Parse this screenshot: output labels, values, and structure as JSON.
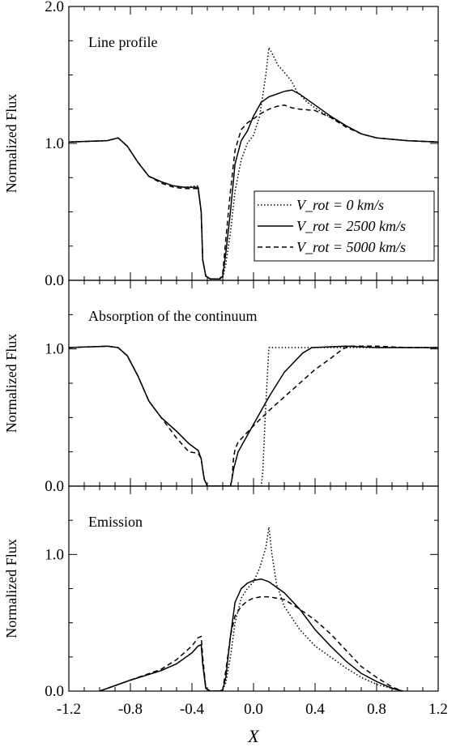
{
  "chart_data": {
    "type": "line",
    "xlabel": "X",
    "xlim": [
      -1.2,
      1.2
    ],
    "x_ticks": [
      "-1.2",
      "-0.8",
      "-0.4",
      "0.0",
      "0.4",
      "0.8",
      "1.2"
    ],
    "legend": {
      "placement": "right-middle of top panel",
      "entries": [
        {
          "style": "dotted",
          "text": "V_rot = 0 km/s"
        },
        {
          "style": "solid",
          "text": "V_rot = 2500 km/s"
        },
        {
          "style": "dashed",
          "text": "V_rot = 5000 km/s"
        }
      ]
    },
    "panels": [
      {
        "title": "Line profile",
        "ylabel": "Normalized Flux",
        "ylim": [
          0,
          2.0
        ],
        "y_ticks": [
          "0.0",
          "1.0",
          "2.0"
        ],
        "series": [
          {
            "style": "solid",
            "x": [
              -1.2,
              -0.95,
              -0.88,
              -0.82,
              -0.75,
              -0.68,
              -0.6,
              -0.52,
              -0.45,
              -0.36,
              -0.34,
              -0.33,
              -0.31,
              -0.28,
              -0.22,
              -0.2,
              -0.18,
              -0.15,
              -0.12,
              -0.08,
              -0.04,
              0.0,
              0.05,
              0.1,
              0.15,
              0.2,
              0.25,
              0.3,
              0.4,
              0.5,
              0.6,
              0.7,
              0.8,
              1.0,
              1.2
            ],
            "y": [
              1.01,
              1.02,
              1.04,
              0.98,
              0.86,
              0.76,
              0.72,
              0.69,
              0.68,
              0.68,
              0.5,
              0.15,
              0.03,
              0.01,
              0.01,
              0.03,
              0.2,
              0.5,
              0.85,
              1.02,
              1.09,
              1.2,
              1.3,
              1.34,
              1.36,
              1.38,
              1.39,
              1.36,
              1.28,
              1.2,
              1.13,
              1.07,
              1.04,
              1.02,
              1.01
            ]
          },
          {
            "style": "dotted",
            "x": [
              -1.2,
              -0.95,
              -0.88,
              -0.82,
              -0.75,
              -0.68,
              -0.6,
              -0.52,
              -0.45,
              -0.36,
              -0.34,
              -0.33,
              -0.31,
              -0.28,
              -0.22,
              -0.2,
              -0.18,
              -0.15,
              -0.12,
              -0.08,
              -0.04,
              0.0,
              0.04,
              0.08,
              0.1,
              0.12,
              0.16,
              0.2,
              0.25,
              0.28,
              0.35,
              0.4,
              0.5,
              0.6,
              0.7,
              0.8,
              1.0,
              1.2
            ],
            "y": [
              1.01,
              1.02,
              1.04,
              0.98,
              0.86,
              0.76,
              0.72,
              0.69,
              0.68,
              0.69,
              0.5,
              0.15,
              0.03,
              0.01,
              0.01,
              0.02,
              0.12,
              0.35,
              0.65,
              0.88,
              1.0,
              1.06,
              1.2,
              1.5,
              1.7,
              1.66,
              1.57,
              1.52,
              1.45,
              1.38,
              1.3,
              1.26,
              1.19,
              1.13,
              1.07,
              1.04,
              1.02,
              1.01
            ]
          },
          {
            "style": "dashed",
            "x": [
              -1.2,
              -0.95,
              -0.88,
              -0.82,
              -0.75,
              -0.68,
              -0.6,
              -0.52,
              -0.45,
              -0.36,
              -0.34,
              -0.33,
              -0.31,
              -0.28,
              -0.22,
              -0.2,
              -0.18,
              -0.15,
              -0.12,
              -0.08,
              -0.04,
              0.0,
              0.05,
              0.1,
              0.15,
              0.2,
              0.25,
              0.3,
              0.4,
              0.5,
              0.6,
              0.7,
              0.8,
              1.0,
              1.2
            ],
            "y": [
              1.01,
              1.02,
              1.04,
              0.98,
              0.86,
              0.76,
              0.71,
              0.68,
              0.67,
              0.67,
              0.5,
              0.15,
              0.03,
              0.01,
              0.01,
              0.05,
              0.3,
              0.65,
              0.95,
              1.1,
              1.15,
              1.18,
              1.22,
              1.25,
              1.27,
              1.28,
              1.26,
              1.25,
              1.24,
              1.19,
              1.12,
              1.07,
              1.04,
              1.02,
              1.01
            ]
          }
        ]
      },
      {
        "title": "Absorption of the continuum",
        "ylabel": "Normalized Flux",
        "ylim": [
          0,
          1.5
        ],
        "y_ticks": [
          "0.0",
          "1.0"
        ],
        "series": [
          {
            "style": "solid",
            "x": [
              -1.2,
              -0.95,
              -0.88,
              -0.82,
              -0.75,
              -0.68,
              -0.6,
              -0.5,
              -0.42,
              -0.36,
              -0.34,
              -0.33,
              -0.32,
              -0.3,
              -0.15,
              -0.14,
              -0.13,
              -0.1,
              0.0,
              0.1,
              0.2,
              0.32,
              0.38,
              0.6,
              0.8,
              1.0,
              1.2
            ],
            "y": [
              1.01,
              1.02,
              1.01,
              0.95,
              0.8,
              0.62,
              0.5,
              0.4,
              0.31,
              0.26,
              0.2,
              0.12,
              0.05,
              0.0,
              0.0,
              0.05,
              0.12,
              0.25,
              0.45,
              0.65,
              0.83,
              0.97,
              1.01,
              1.02,
              1.01,
              1.01,
              1.01
            ]
          },
          {
            "style": "dotted",
            "x": [
              -1.2,
              -0.95,
              -0.88,
              -0.82,
              -0.75,
              -0.68,
              -0.6,
              -0.5,
              -0.42,
              -0.36,
              -0.34,
              -0.33,
              -0.32,
              -0.3,
              0.05,
              0.06,
              0.08,
              0.1,
              0.2,
              0.4,
              0.6,
              0.8,
              1.0,
              1.2
            ],
            "y": [
              1.01,
              1.02,
              1.01,
              0.95,
              0.8,
              0.62,
              0.5,
              0.4,
              0.31,
              0.26,
              0.2,
              0.12,
              0.05,
              0.0,
              0.0,
              0.1,
              0.6,
              1.01,
              1.01,
              1.01,
              1.01,
              1.01,
              1.01,
              1.01
            ]
          },
          {
            "style": "dashed",
            "x": [
              -1.2,
              -0.95,
              -0.88,
              -0.82,
              -0.75,
              -0.68,
              -0.6,
              -0.5,
              -0.42,
              -0.36,
              -0.34,
              -0.33,
              -0.32,
              -0.3,
              -0.15,
              -0.14,
              -0.13,
              -0.12,
              -0.1,
              0.0,
              0.1,
              0.2,
              0.3,
              0.4,
              0.5,
              0.58,
              0.62,
              0.8,
              1.0,
              1.2
            ],
            "y": [
              1.01,
              1.02,
              1.01,
              0.95,
              0.8,
              0.62,
              0.5,
              0.35,
              0.25,
              0.24,
              0.2,
              0.12,
              0.05,
              0.0,
              0.0,
              0.05,
              0.2,
              0.27,
              0.32,
              0.44,
              0.55,
              0.65,
              0.75,
              0.85,
              0.93,
              1.0,
              1.02,
              1.02,
              1.01,
              1.01
            ]
          }
        ]
      },
      {
        "title": "Emission",
        "ylabel": "Normalized Flux",
        "ylim": [
          0,
          1.5
        ],
        "y_ticks": [
          "0.0",
          "1.0"
        ],
        "series": [
          {
            "style": "solid",
            "x": [
              -1.0,
              -0.8,
              -0.6,
              -0.5,
              -0.4,
              -0.36,
              -0.34,
              -0.33,
              -0.31,
              -0.28,
              -0.22,
              -0.2,
              -0.18,
              -0.15,
              -0.12,
              -0.08,
              -0.04,
              0.0,
              0.05,
              0.1,
              0.2,
              0.3,
              0.4,
              0.5,
              0.6,
              0.7,
              0.8,
              0.9,
              0.97
            ],
            "y": [
              0.0,
              0.08,
              0.15,
              0.2,
              0.28,
              0.33,
              0.34,
              0.2,
              0.02,
              0.0,
              0.0,
              0.01,
              0.1,
              0.4,
              0.65,
              0.75,
              0.79,
              0.81,
              0.82,
              0.8,
              0.72,
              0.6,
              0.45,
              0.33,
              0.22,
              0.13,
              0.07,
              0.02,
              0.0
            ]
          },
          {
            "style": "dotted",
            "x": [
              -1.0,
              -0.8,
              -0.6,
              -0.5,
              -0.4,
              -0.36,
              -0.34,
              -0.33,
              -0.31,
              -0.28,
              -0.22,
              -0.2,
              -0.18,
              -0.15,
              -0.12,
              -0.08,
              -0.04,
              0.0,
              0.04,
              0.08,
              0.1,
              0.12,
              0.15,
              0.2,
              0.3,
              0.4,
              0.5,
              0.6,
              0.7,
              0.8,
              0.9,
              0.97
            ],
            "y": [
              0.0,
              0.08,
              0.15,
              0.2,
              0.28,
              0.33,
              0.34,
              0.2,
              0.02,
              0.0,
              0.0,
              0.01,
              0.06,
              0.25,
              0.5,
              0.68,
              0.75,
              0.8,
              0.9,
              1.05,
              1.2,
              1.0,
              0.78,
              0.62,
              0.45,
              0.33,
              0.25,
              0.17,
              0.1,
              0.05,
              0.02,
              0.0
            ]
          },
          {
            "style": "dashed",
            "x": [
              -1.0,
              -0.8,
              -0.6,
              -0.5,
              -0.4,
              -0.36,
              -0.34,
              -0.33,
              -0.31,
              -0.28,
              -0.22,
              -0.2,
              -0.18,
              -0.15,
              -0.12,
              -0.08,
              -0.04,
              0.0,
              0.05,
              0.1,
              0.2,
              0.3,
              0.4,
              0.5,
              0.6,
              0.7,
              0.8,
              0.9,
              0.97
            ],
            "y": [
              0.0,
              0.08,
              0.16,
              0.23,
              0.33,
              0.39,
              0.4,
              0.25,
              0.02,
              0.0,
              0.0,
              0.01,
              0.15,
              0.4,
              0.55,
              0.62,
              0.66,
              0.68,
              0.69,
              0.69,
              0.67,
              0.6,
              0.52,
              0.42,
              0.3,
              0.18,
              0.1,
              0.03,
              0.0
            ]
          }
        ]
      }
    ]
  }
}
